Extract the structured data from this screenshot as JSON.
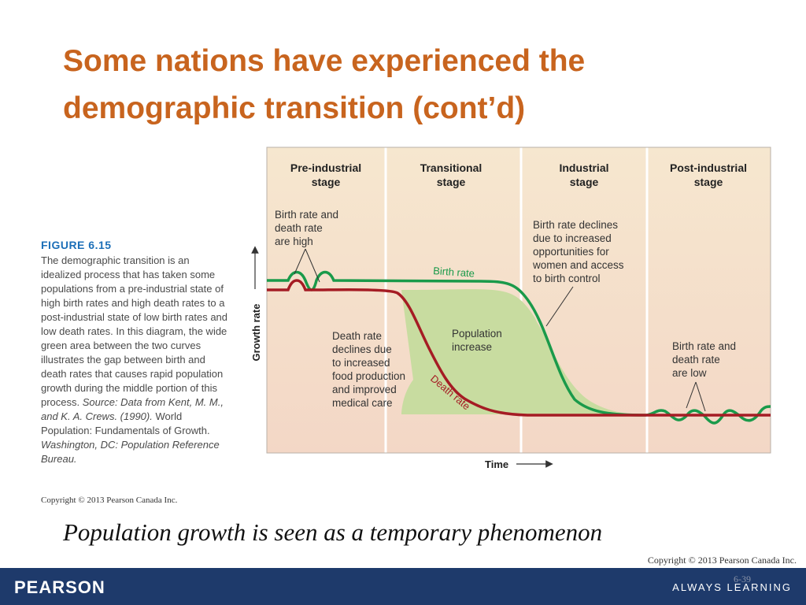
{
  "slide": {
    "title_line1": "Some nations have experienced the",
    "title_line2": "demographic transition (cont’d)",
    "subtitle": "Population growth is seen as a temporary phenomenon",
    "slide_number": "6-39",
    "copyright_footer": "Copyright © 2013 Pearson Canada Inc.",
    "brand": "PEARSON",
    "tagline": "ALWAYS LEARNING",
    "colors": {
      "title": "#c8641e",
      "footer": "#1e3a6b",
      "figure_label": "#1c6fb8"
    }
  },
  "figure": {
    "label": "FIGURE 6.15",
    "caption": "The demographic transition is an idealized process that has taken some populations from a pre-industrial state of high birth rates and high death rates to a post-industrial state of low birth rates and low death rates. In this diagram, the wide green area between the two curves illustrates the gap between birth and death rates that causes rapid population growth during the middle portion of this process.",
    "source": "Source: Data from Kent, M. M., and K. A. Crews. (1990).",
    "source_title": "World Population: Fundamentals of Growth.",
    "source_place": "Washington, DC: Population Reference Bureau.",
    "copyright": "Copyright © 2013 Pearson Canada Inc."
  },
  "diagram": {
    "stages": [
      {
        "line1": "Pre-industrial",
        "line2": "stage"
      },
      {
        "line1": "Transitional",
        "line2": "stage"
      },
      {
        "line1": "Industrial",
        "line2": "stage"
      },
      {
        "line1": "Post-industrial",
        "line2": "stage"
      }
    ],
    "y_axis": "Growth rate",
    "x_axis": "Time",
    "curves": {
      "birth": {
        "label": "Birth rate",
        "color": "#1a9a4a"
      },
      "death": {
        "label": "Death rate",
        "color": "#a51c24"
      },
      "fill_color": "#c8dca0"
    },
    "annotations": {
      "pre_high": [
        "Birth rate and",
        "death rate",
        "are high"
      ],
      "death_declines": [
        "Death rate",
        "declines due",
        "to increased",
        "food production",
        "and improved",
        "medical care"
      ],
      "population_increase": [
        "Population",
        "increase"
      ],
      "birth_declines": [
        "Birth rate declines",
        "due to increased",
        "opportunities for",
        "women and access",
        "to birth control"
      ],
      "post_low": [
        "Birth rate and",
        "death rate",
        "are low"
      ]
    }
  }
}
